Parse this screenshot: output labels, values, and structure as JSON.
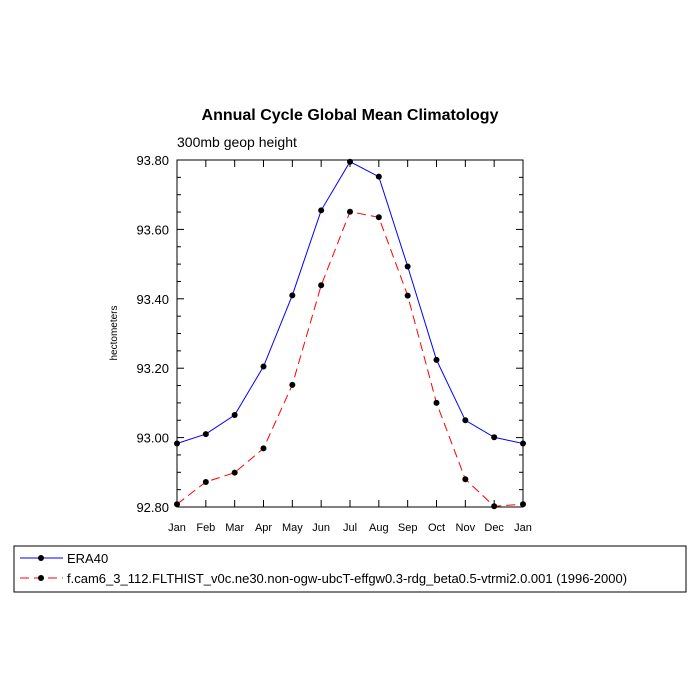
{
  "chart_data": {
    "type": "line",
    "title": "Annual Cycle Global Mean Climatology",
    "subtitle": "300mb geop height",
    "xlabel": "",
    "ylabel": "hectometers",
    "categories": [
      "Jan",
      "Feb",
      "Mar",
      "Apr",
      "May",
      "Jun",
      "Jul",
      "Aug",
      "Sep",
      "Oct",
      "Nov",
      "Dec",
      "Jan"
    ],
    "ylim": [
      92.8,
      93.8
    ],
    "yticks": [
      "92.80",
      "93.00",
      "93.20",
      "93.40",
      "93.60",
      "93.80"
    ],
    "grid": false,
    "legend": "bottom",
    "series": [
      {
        "name": "ERA40",
        "color": "#0000ff",
        "dash": "solid",
        "values": [
          92.983,
          93.01,
          93.065,
          93.205,
          93.41,
          93.655,
          93.795,
          93.752,
          93.493,
          93.224,
          93.05,
          93.001,
          92.983
        ]
      },
      {
        "name": "f.cam6_3_112.FLTHIST_v0c.ne30.non-ogw-ubcT-effgw0.3-rdg_beta0.5-vtrmi2.0.001 (1996-2000)",
        "color": "#ff0000",
        "dash": "dashed",
        "values": [
          92.808,
          92.872,
          92.899,
          92.969,
          93.152,
          93.439,
          93.651,
          93.635,
          93.409,
          93.1,
          92.88,
          92.802,
          92.808
        ]
      }
    ]
  }
}
